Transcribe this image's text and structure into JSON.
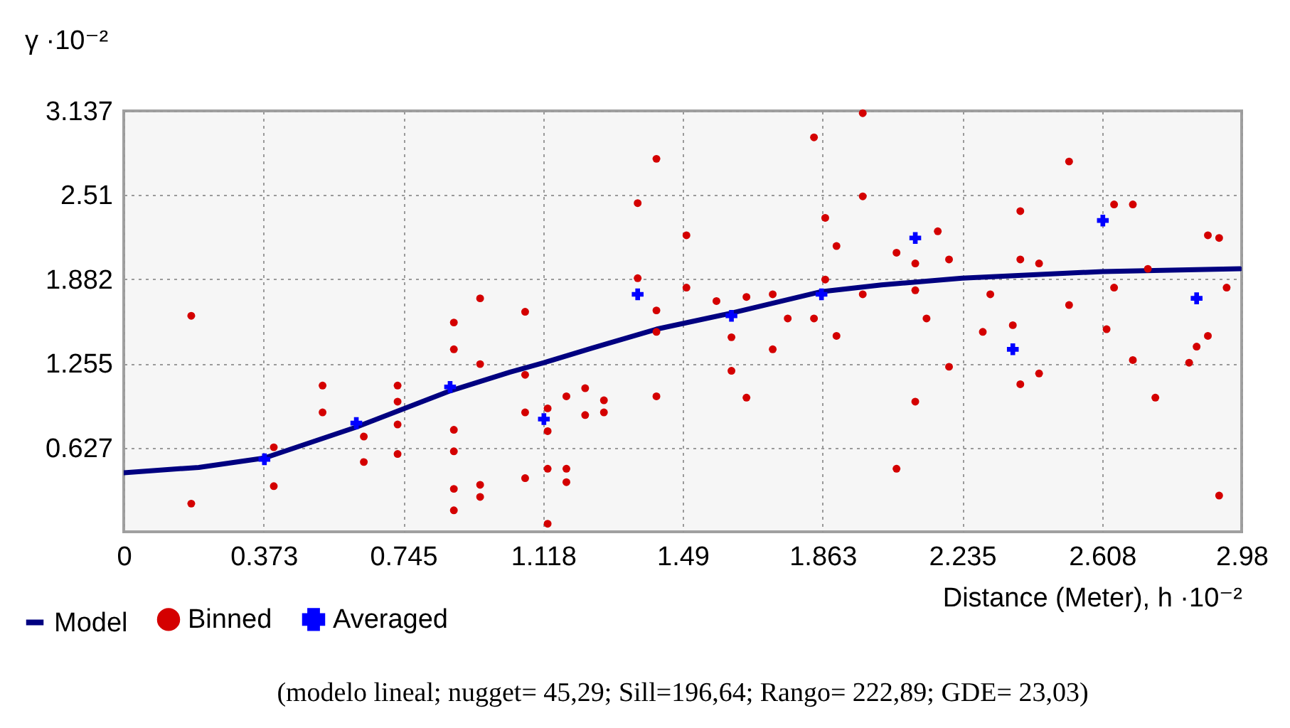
{
  "chart_data": {
    "type": "scatter",
    "xlabel": "Distance (Meter), h ·10⁻²",
    "ylabel": "γ ·10⁻²",
    "xlim": [
      0,
      2.98
    ],
    "xticks": [
      0,
      0.373,
      0.745,
      1.118,
      1.49,
      1.863,
      2.235,
      2.608,
      2.98
    ],
    "ylim": [
      0,
      3.137
    ],
    "yticks": [
      0.627,
      1.255,
      1.882,
      2.51,
      3.137
    ],
    "grid": true,
    "legend": "bottom left",
    "annotations": [
      "(modelo lineal; nugget= 45,29; Sill=196,64; Rango= 222,89; GDE= 23,03)"
    ],
    "series": [
      {
        "name": "Model",
        "type": "line",
        "color": "#000080",
        "marker": "none",
        "x": [
          0,
          0.2,
          0.375,
          0.62,
          0.87,
          1.03,
          1.12,
          1.25,
          1.42,
          1.62,
          1.86,
          2.02,
          2.235,
          2.61,
          2.975
        ],
        "values": [
          0.44,
          0.48,
          0.55,
          0.78,
          1.05,
          1.19,
          1.26,
          1.37,
          1.51,
          1.63,
          1.79,
          1.84,
          1.89,
          1.94,
          1.96
        ]
      },
      {
        "name": "Binned",
        "type": "scatter",
        "color": "#d40000",
        "marker": "circle",
        "x": [
          0.18,
          0.18,
          0.4,
          0.4,
          0.53,
          0.53,
          0.64,
          0.64,
          0.73,
          0.73,
          0.73,
          0.73,
          0.88,
          0.88,
          0.88,
          0.88,
          0.88,
          0.88,
          0.95,
          0.95,
          0.95,
          0.95,
          1.07,
          1.07,
          1.07,
          1.07,
          1.13,
          1.13,
          1.13,
          1.13,
          1.18,
          1.18,
          1.18,
          1.23,
          1.23,
          1.28,
          1.28,
          1.37,
          1.37,
          1.42,
          1.42,
          1.42,
          1.42,
          1.5,
          1.5,
          1.58,
          1.62,
          1.62,
          1.66,
          1.66,
          1.73,
          1.73,
          1.77,
          1.84,
          1.84,
          1.87,
          1.87,
          1.9,
          1.9,
          1.97,
          1.97,
          1.97,
          2.06,
          2.06,
          2.11,
          2.11,
          2.11,
          2.14,
          2.17,
          2.2,
          2.2,
          2.31,
          2.29,
          2.37,
          2.39,
          2.39,
          2.39,
          2.44,
          2.44,
          2.52,
          2.52,
          2.62,
          2.64,
          2.64,
          2.69,
          2.69,
          2.73,
          2.75,
          2.84,
          2.86,
          2.89,
          2.89,
          2.92,
          2.94,
          2.92
        ],
        "values": [
          1.61,
          0.21,
          0.63,
          0.34,
          1.09,
          0.89,
          0.71,
          0.52,
          1.09,
          0.97,
          0.8,
          0.58,
          1.56,
          1.36,
          0.76,
          0.6,
          0.32,
          0.16,
          1.74,
          1.25,
          0.35,
          0.26,
          1.64,
          1.17,
          0.89,
          0.4,
          0.92,
          0.75,
          0.47,
          0.06,
          1.01,
          0.47,
          0.37,
          1.07,
          0.87,
          0.98,
          0.89,
          2.45,
          1.89,
          2.78,
          1.65,
          1.49,
          1.01,
          2.21,
          1.82,
          1.72,
          1.45,
          1.2,
          1.75,
          1.0,
          1.77,
          1.36,
          1.59,
          2.94,
          1.59,
          2.34,
          1.88,
          2.13,
          1.46,
          3.12,
          2.5,
          1.77,
          2.08,
          0.47,
          2.0,
          1.8,
          0.97,
          1.59,
          2.24,
          2.03,
          1.23,
          1.77,
          1.49,
          1.54,
          2.39,
          2.03,
          1.1,
          2.0,
          1.18,
          2.76,
          1.69,
          1.51,
          2.44,
          1.82,
          2.44,
          1.28,
          1.96,
          1.0,
          1.26,
          1.38,
          1.46,
          2.21,
          2.19,
          1.82,
          0.27
        ]
      },
      {
        "name": "Averaged",
        "type": "scatter",
        "color": "#0000ff",
        "marker": "cross",
        "x": [
          0.375,
          0.62,
          0.87,
          1.12,
          1.37,
          1.62,
          1.86,
          2.11,
          2.37,
          2.61,
          2.86
        ],
        "values": [
          0.54,
          0.81,
          1.08,
          0.84,
          1.77,
          1.61,
          1.77,
          2.19,
          1.36,
          2.32,
          1.74
        ]
      }
    ]
  }
}
